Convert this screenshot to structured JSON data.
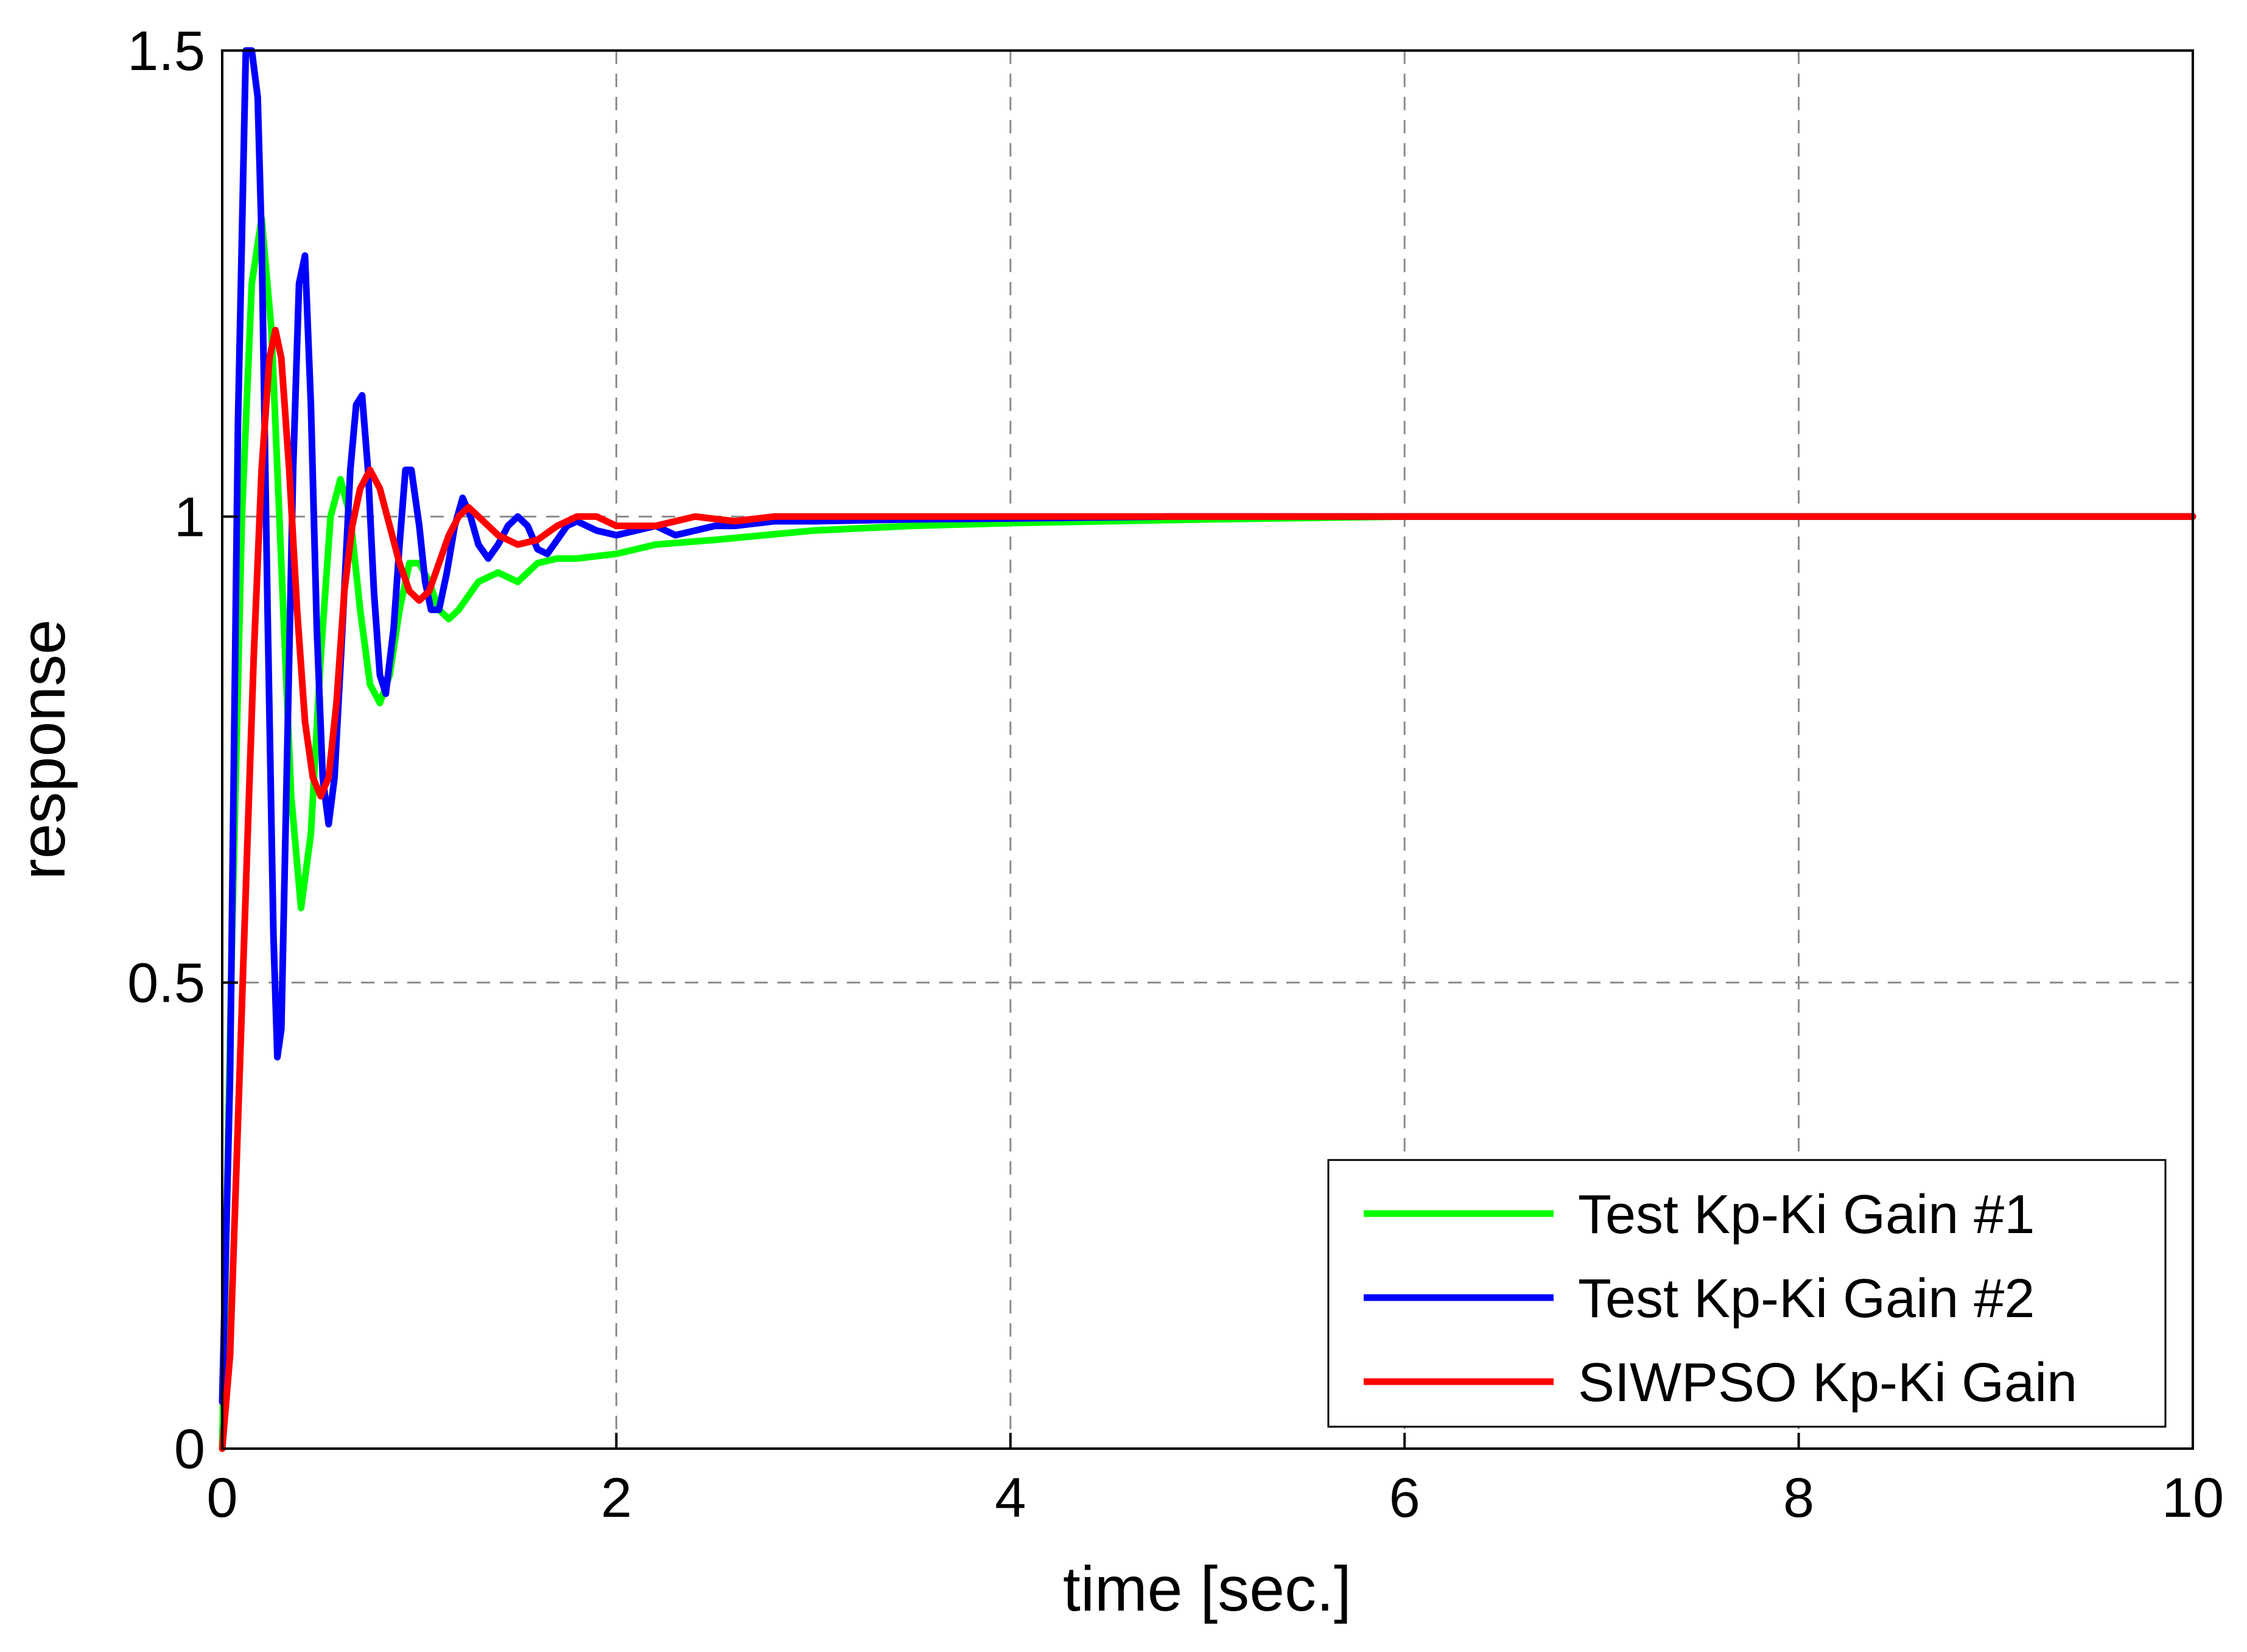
{
  "chart_data": {
    "type": "line",
    "title": "",
    "xlabel": "time [sec.]",
    "ylabel": "response",
    "xlim": [
      0,
      10
    ],
    "ylim": [
      0,
      1.5
    ],
    "xticks": [
      0,
      2,
      4,
      6,
      8,
      10
    ],
    "xtick_labels": [
      "0",
      "2",
      "4",
      "6",
      "8",
      "10"
    ],
    "yticks": [
      0,
      0.5,
      1,
      1.5
    ],
    "ytick_labels": [
      "0",
      "0.5",
      "1",
      "1.5"
    ],
    "grid": true,
    "legend_position": "bottom-right",
    "series": [
      {
        "name": "Test Kp-Ki Gain #1",
        "color": "#00ff00",
        "points": [
          [
            0,
            0
          ],
          [
            0.05,
            0.55
          ],
          [
            0.1,
            1.0
          ],
          [
            0.15,
            1.25
          ],
          [
            0.2,
            1.32
          ],
          [
            0.25,
            1.2
          ],
          [
            0.3,
            0.95
          ],
          [
            0.35,
            0.7
          ],
          [
            0.4,
            0.58
          ],
          [
            0.45,
            0.66
          ],
          [
            0.5,
            0.85
          ],
          [
            0.55,
            1.0
          ],
          [
            0.6,
            1.04
          ],
          [
            0.65,
            1.0
          ],
          [
            0.7,
            0.9
          ],
          [
            0.75,
            0.82
          ],
          [
            0.8,
            0.8
          ],
          [
            0.85,
            0.83
          ],
          [
            0.9,
            0.9
          ],
          [
            0.95,
            0.95
          ],
          [
            1.0,
            0.95
          ],
          [
            1.05,
            0.93
          ],
          [
            1.1,
            0.9
          ],
          [
            1.15,
            0.89
          ],
          [
            1.2,
            0.9
          ],
          [
            1.3,
            0.93
          ],
          [
            1.4,
            0.94
          ],
          [
            1.5,
            0.93
          ],
          [
            1.6,
            0.95
          ],
          [
            1.7,
            0.955
          ],
          [
            1.8,
            0.955
          ],
          [
            2.0,
            0.96
          ],
          [
            2.2,
            0.97
          ],
          [
            2.5,
            0.975
          ],
          [
            3.0,
            0.985
          ],
          [
            3.5,
            0.99
          ],
          [
            4.0,
            0.993
          ],
          [
            5.0,
            0.997
          ],
          [
            6.0,
            1.0
          ],
          [
            8.0,
            1.0
          ],
          [
            10.0,
            1.0
          ]
        ]
      },
      {
        "name": "Test Kp-Ki Gain #2",
        "color": "#0000ff",
        "points": [
          [
            0,
            0.05
          ],
          [
            0.04,
            0.4
          ],
          [
            0.08,
            1.1
          ],
          [
            0.12,
            1.5
          ],
          [
            0.15,
            1.5
          ],
          [
            0.18,
            1.45
          ],
          [
            0.2,
            1.3
          ],
          [
            0.23,
            0.9
          ],
          [
            0.26,
            0.55
          ],
          [
            0.28,
            0.42
          ],
          [
            0.3,
            0.45
          ],
          [
            0.32,
            0.65
          ],
          [
            0.36,
            1.05
          ],
          [
            0.39,
            1.25
          ],
          [
            0.42,
            1.28
          ],
          [
            0.45,
            1.12
          ],
          [
            0.48,
            0.88
          ],
          [
            0.51,
            0.72
          ],
          [
            0.54,
            0.67
          ],
          [
            0.57,
            0.72
          ],
          [
            0.61,
            0.88
          ],
          [
            0.65,
            1.05
          ],
          [
            0.68,
            1.12
          ],
          [
            0.71,
            1.13
          ],
          [
            0.74,
            1.05
          ],
          [
            0.77,
            0.92
          ],
          [
            0.8,
            0.83
          ],
          [
            0.83,
            0.81
          ],
          [
            0.87,
            0.88
          ],
          [
            0.9,
            0.97
          ],
          [
            0.93,
            1.05
          ],
          [
            0.96,
            1.05
          ],
          [
            1.0,
            0.99
          ],
          [
            1.03,
            0.93
          ],
          [
            1.06,
            0.9
          ],
          [
            1.1,
            0.9
          ],
          [
            1.14,
            0.94
          ],
          [
            1.18,
            0.99
          ],
          [
            1.22,
            1.02
          ],
          [
            1.26,
            1.0
          ],
          [
            1.3,
            0.97
          ],
          [
            1.35,
            0.955
          ],
          [
            1.4,
            0.97
          ],
          [
            1.45,
            0.99
          ],
          [
            1.5,
            1.0
          ],
          [
            1.55,
            0.99
          ],
          [
            1.6,
            0.965
          ],
          [
            1.65,
            0.96
          ],
          [
            1.7,
            0.975
          ],
          [
            1.75,
            0.99
          ],
          [
            1.8,
            0.995
          ],
          [
            1.9,
            0.985
          ],
          [
            2.0,
            0.98
          ],
          [
            2.1,
            0.985
          ],
          [
            2.2,
            0.99
          ],
          [
            2.3,
            0.98
          ],
          [
            2.4,
            0.985
          ],
          [
            2.5,
            0.99
          ],
          [
            2.6,
            0.99
          ],
          [
            2.8,
            0.995
          ],
          [
            3.0,
            0.995
          ],
          [
            3.5,
            0.997
          ],
          [
            4.0,
            0.998
          ],
          [
            4.8,
            1.0
          ],
          [
            6.0,
            1.0
          ],
          [
            8.0,
            1.0
          ],
          [
            10.0,
            1.0
          ]
        ]
      },
      {
        "name": "SIWPSO Kp-Ki Gain",
        "color": "#ff0000",
        "points": [
          [
            0,
            0
          ],
          [
            0.04,
            0.1
          ],
          [
            0.08,
            0.35
          ],
          [
            0.12,
            0.6
          ],
          [
            0.16,
            0.85
          ],
          [
            0.2,
            1.05
          ],
          [
            0.24,
            1.17
          ],
          [
            0.27,
            1.2
          ],
          [
            0.3,
            1.17
          ],
          [
            0.34,
            1.05
          ],
          [
            0.38,
            0.9
          ],
          [
            0.42,
            0.78
          ],
          [
            0.46,
            0.72
          ],
          [
            0.5,
            0.7
          ],
          [
            0.54,
            0.72
          ],
          [
            0.58,
            0.8
          ],
          [
            0.62,
            0.92
          ],
          [
            0.66,
            0.99
          ],
          [
            0.7,
            1.03
          ],
          [
            0.75,
            1.05
          ],
          [
            0.8,
            1.03
          ],
          [
            0.85,
            0.99
          ],
          [
            0.9,
            0.95
          ],
          [
            0.95,
            0.92
          ],
          [
            1.0,
            0.91
          ],
          [
            1.05,
            0.92
          ],
          [
            1.1,
            0.95
          ],
          [
            1.15,
            0.98
          ],
          [
            1.2,
            1.0
          ],
          [
            1.25,
            1.01
          ],
          [
            1.3,
            1.0
          ],
          [
            1.4,
            0.98
          ],
          [
            1.5,
            0.97
          ],
          [
            1.6,
            0.975
          ],
          [
            1.7,
            0.99
          ],
          [
            1.8,
            1.0
          ],
          [
            1.9,
            1.0
          ],
          [
            2.0,
            0.99
          ],
          [
            2.2,
            0.99
          ],
          [
            2.4,
            1.0
          ],
          [
            2.6,
            0.995
          ],
          [
            2.8,
            1.0
          ],
          [
            3.0,
            1.0
          ],
          [
            4.0,
            1.0
          ],
          [
            6.0,
            1.0
          ],
          [
            8.0,
            1.0
          ],
          [
            10.0,
            1.0
          ]
        ]
      }
    ]
  }
}
